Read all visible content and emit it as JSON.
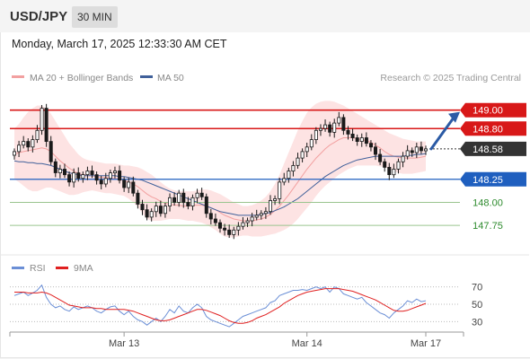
{
  "header": {
    "symbol": "USD/JPY",
    "timeframe": "30 MIN"
  },
  "datetime": "Monday, March 17, 2025 12:33:30 AM CET",
  "legend": {
    "bb_label": "MA 20 + Bollinger Bands",
    "ma50_label": "MA 50",
    "source": "Research © 2025 Trading Central"
  },
  "rsi_legend": {
    "rsi_label": "RSI",
    "ma_label": "9MA"
  },
  "colors": {
    "resistance": "#d81818",
    "support": "#1f5fbf",
    "target_green": "#2e8b2e",
    "up_candle": "#ffffff",
    "down_candle": "#1a1a1a",
    "bb_fill": "#fde3e3",
    "ma20": "#f2a0a0",
    "ma50": "#40609a",
    "rsi": "#6b8fd6",
    "rsi_ma": "#e02020",
    "arrow": "#2b5aa5",
    "last_price_bg": "#333333"
  },
  "chart_data": [
    {
      "type": "candlestick",
      "x_ticks": [
        "Mar 13",
        "Mar 14",
        "Mar 17"
      ],
      "ylim": [
        147.45,
        149.25
      ],
      "levels": [
        {
          "label": "149.00",
          "value": 149.0,
          "kind": "resistance"
        },
        {
          "label": "148.80",
          "value": 148.8,
          "kind": "resistance"
        },
        {
          "label": "148.58",
          "value": 148.58,
          "kind": "last"
        },
        {
          "label": "148.25",
          "value": 148.25,
          "kind": "support"
        },
        {
          "label": "148.00",
          "value": 148.0,
          "kind": "support-minor"
        },
        {
          "label": "147.75",
          "value": 147.75,
          "kind": "support-minor"
        }
      ],
      "close": [
        148.55,
        148.62,
        148.66,
        148.6,
        148.68,
        148.78,
        149.02,
        148.66,
        148.44,
        148.32,
        148.36,
        148.3,
        148.22,
        148.32,
        148.26,
        148.3,
        148.34,
        148.3,
        148.24,
        148.2,
        148.26,
        148.32,
        148.34,
        148.24,
        148.16,
        148.22,
        148.1,
        147.98,
        147.92,
        147.84,
        147.9,
        147.96,
        147.88,
        147.96,
        148.05,
        148.0,
        148.1,
        148.0,
        147.96,
        148.05,
        148.1,
        148.06,
        147.88,
        147.82,
        147.78,
        147.72,
        147.7,
        147.65,
        147.7,
        147.74,
        147.78,
        147.8,
        147.84,
        147.86,
        147.88,
        147.9,
        148.02,
        148.04,
        148.22,
        148.26,
        148.34,
        148.4,
        148.48,
        148.55,
        148.6,
        148.68,
        148.78,
        148.8,
        148.84,
        148.76,
        148.86,
        148.92,
        148.78,
        148.74,
        148.7,
        148.66,
        148.7,
        148.64,
        148.6,
        148.52,
        148.44,
        148.38,
        148.3,
        148.36,
        148.44,
        148.5,
        148.56,
        148.54,
        148.6,
        148.56,
        148.58
      ],
      "ma20": [
        148.52,
        148.54,
        148.55,
        148.56,
        148.57,
        148.58,
        148.59,
        148.58,
        148.55,
        148.5,
        148.45,
        148.41,
        148.37,
        148.34,
        148.31,
        148.3,
        148.29,
        148.29,
        148.28,
        148.27,
        148.27,
        148.26,
        148.26,
        148.25,
        148.24,
        148.22,
        148.2,
        148.17,
        148.13,
        148.09,
        148.06,
        148.04,
        148.01,
        147.99,
        147.98,
        147.97,
        147.97,
        147.96,
        147.96,
        147.97,
        147.97,
        147.97,
        147.96,
        147.94,
        147.92,
        147.89,
        147.86,
        147.84,
        147.82,
        147.81,
        147.8,
        147.8,
        147.8,
        147.81,
        147.82,
        147.84,
        147.87,
        147.91,
        147.96,
        148.02,
        148.08,
        148.15,
        148.22,
        148.29,
        148.36,
        148.42,
        148.48,
        148.53,
        148.58,
        148.62,
        148.65,
        148.68,
        148.7,
        148.7,
        148.7,
        148.69,
        148.68,
        148.67,
        148.65,
        148.62,
        148.59,
        148.55,
        148.52,
        148.5,
        148.49,
        148.48,
        148.48,
        148.48,
        148.48,
        148.49,
        148.5
      ],
      "bb_upper": [
        148.8,
        148.85,
        148.92,
        148.98,
        149.02,
        149.05,
        149.05,
        149.02,
        148.96,
        148.88,
        148.8,
        148.72,
        148.64,
        148.58,
        148.52,
        148.48,
        148.46,
        148.45,
        148.44,
        148.43,
        148.42,
        148.42,
        148.42,
        148.41,
        148.4,
        148.4,
        148.39,
        148.38,
        148.36,
        148.33,
        148.3,
        148.26,
        148.22,
        148.18,
        148.15,
        148.13,
        148.12,
        148.12,
        148.12,
        148.12,
        148.13,
        148.14,
        148.14,
        148.13,
        148.11,
        148.09,
        148.06,
        148.03,
        148.0,
        147.98,
        147.96,
        147.96,
        147.97,
        147.99,
        148.02,
        148.06,
        148.12,
        148.2,
        148.3,
        148.42,
        148.54,
        148.66,
        148.78,
        148.88,
        148.97,
        149.03,
        149.07,
        149.09,
        149.1,
        149.1,
        149.09,
        149.07,
        149.05,
        149.02,
        148.99,
        148.96,
        148.93,
        148.9,
        148.87,
        148.84,
        148.81,
        148.78,
        148.75,
        148.73,
        148.71,
        148.69,
        148.68,
        148.67,
        148.66,
        148.66,
        148.66
      ],
      "bb_lower": [
        148.25,
        148.22,
        148.18,
        148.14,
        148.12,
        148.12,
        148.14,
        148.16,
        148.16,
        148.14,
        148.12,
        148.1,
        148.08,
        148.08,
        148.09,
        148.11,
        148.12,
        148.13,
        148.12,
        148.11,
        148.1,
        148.1,
        148.09,
        148.08,
        148.07,
        148.04,
        148.0,
        147.95,
        147.88,
        147.82,
        147.8,
        147.8,
        147.8,
        147.81,
        147.82,
        147.82,
        147.82,
        147.81,
        147.8,
        147.8,
        147.79,
        147.78,
        147.76,
        147.73,
        147.7,
        147.66,
        147.63,
        147.62,
        147.62,
        147.63,
        147.64,
        147.64,
        147.63,
        147.63,
        147.63,
        147.64,
        147.65,
        147.66,
        147.68,
        147.7,
        147.73,
        147.77,
        147.82,
        147.88,
        147.94,
        148.0,
        148.07,
        148.13,
        148.18,
        148.22,
        148.26,
        148.3,
        148.33,
        148.36,
        148.38,
        148.4,
        148.4,
        148.4,
        148.4,
        148.4,
        148.39,
        148.38,
        148.36,
        148.34,
        148.32,
        148.31,
        148.31,
        148.31,
        148.32,
        148.33,
        148.34
      ],
      "ma50": [
        148.45,
        148.44,
        148.44,
        148.43,
        148.43,
        148.42,
        148.42,
        148.41,
        148.4,
        148.38,
        148.36,
        148.34,
        148.32,
        148.31,
        148.3,
        148.29,
        148.29,
        148.29,
        148.29,
        148.29,
        148.29,
        148.29,
        148.29,
        148.28,
        148.28,
        148.27,
        148.26,
        148.25,
        148.24,
        148.22,
        148.2,
        148.18,
        148.16,
        148.14,
        148.12,
        148.1,
        148.08,
        148.06,
        148.04,
        148.02,
        148.0,
        147.98,
        147.96,
        147.94,
        147.92,
        147.9,
        147.89,
        147.88,
        147.87,
        147.86,
        147.86,
        147.86,
        147.86,
        147.86,
        147.87,
        147.88,
        147.89,
        147.91,
        147.93,
        147.95,
        147.98,
        148.01,
        148.04,
        148.08,
        148.12,
        148.16,
        148.2,
        148.24,
        148.28,
        148.31,
        148.34,
        148.37,
        148.4,
        148.42,
        148.44,
        148.46,
        148.47,
        148.48,
        148.49,
        148.5,
        148.5,
        148.5,
        148.5,
        148.5,
        148.5,
        148.5,
        148.51,
        148.51,
        148.52,
        148.52,
        148.53
      ]
    },
    {
      "type": "line",
      "name": "RSI",
      "ylim": [
        20,
        80
      ],
      "y_ticks": [
        70,
        50,
        30
      ],
      "rsi": [
        60,
        62,
        64,
        60,
        63,
        66,
        72,
        58,
        50,
        46,
        48,
        44,
        42,
        47,
        44,
        46,
        48,
        46,
        42,
        40,
        44,
        47,
        48,
        42,
        38,
        42,
        36,
        32,
        30,
        26,
        30,
        34,
        30,
        36,
        44,
        40,
        48,
        42,
        40,
        46,
        50,
        46,
        36,
        32,
        30,
        28,
        26,
        24,
        28,
        32,
        36,
        38,
        40,
        42,
        44,
        46,
        52,
        54,
        60,
        62,
        64,
        66,
        66,
        67,
        66,
        68,
        70,
        68,
        70,
        64,
        70,
        68,
        62,
        60,
        58,
        56,
        58,
        52,
        48,
        44,
        40,
        38,
        34,
        40,
        44,
        48,
        54,
        52,
        56,
        53,
        54
      ],
      "rsi_ma": [
        64,
        64,
        64,
        63,
        63,
        63,
        64,
        63,
        61,
        58,
        55,
        52,
        49,
        48,
        47,
        46,
        46,
        46,
        45,
        45,
        44,
        44,
        44,
        44,
        44,
        43,
        42,
        40,
        38,
        36,
        34,
        32,
        31,
        31,
        32,
        34,
        36,
        38,
        40,
        42,
        44,
        44,
        43,
        41,
        39,
        37,
        34,
        31,
        29,
        28,
        28,
        29,
        31,
        34,
        36,
        38,
        41,
        44,
        47,
        51,
        54,
        57,
        60,
        62,
        64,
        65,
        66,
        67,
        68,
        68,
        68,
        68,
        67,
        66,
        65,
        63,
        61,
        59,
        57,
        55,
        52,
        49,
        46,
        43,
        42,
        42,
        43,
        45,
        47,
        49,
        51
      ]
    }
  ]
}
